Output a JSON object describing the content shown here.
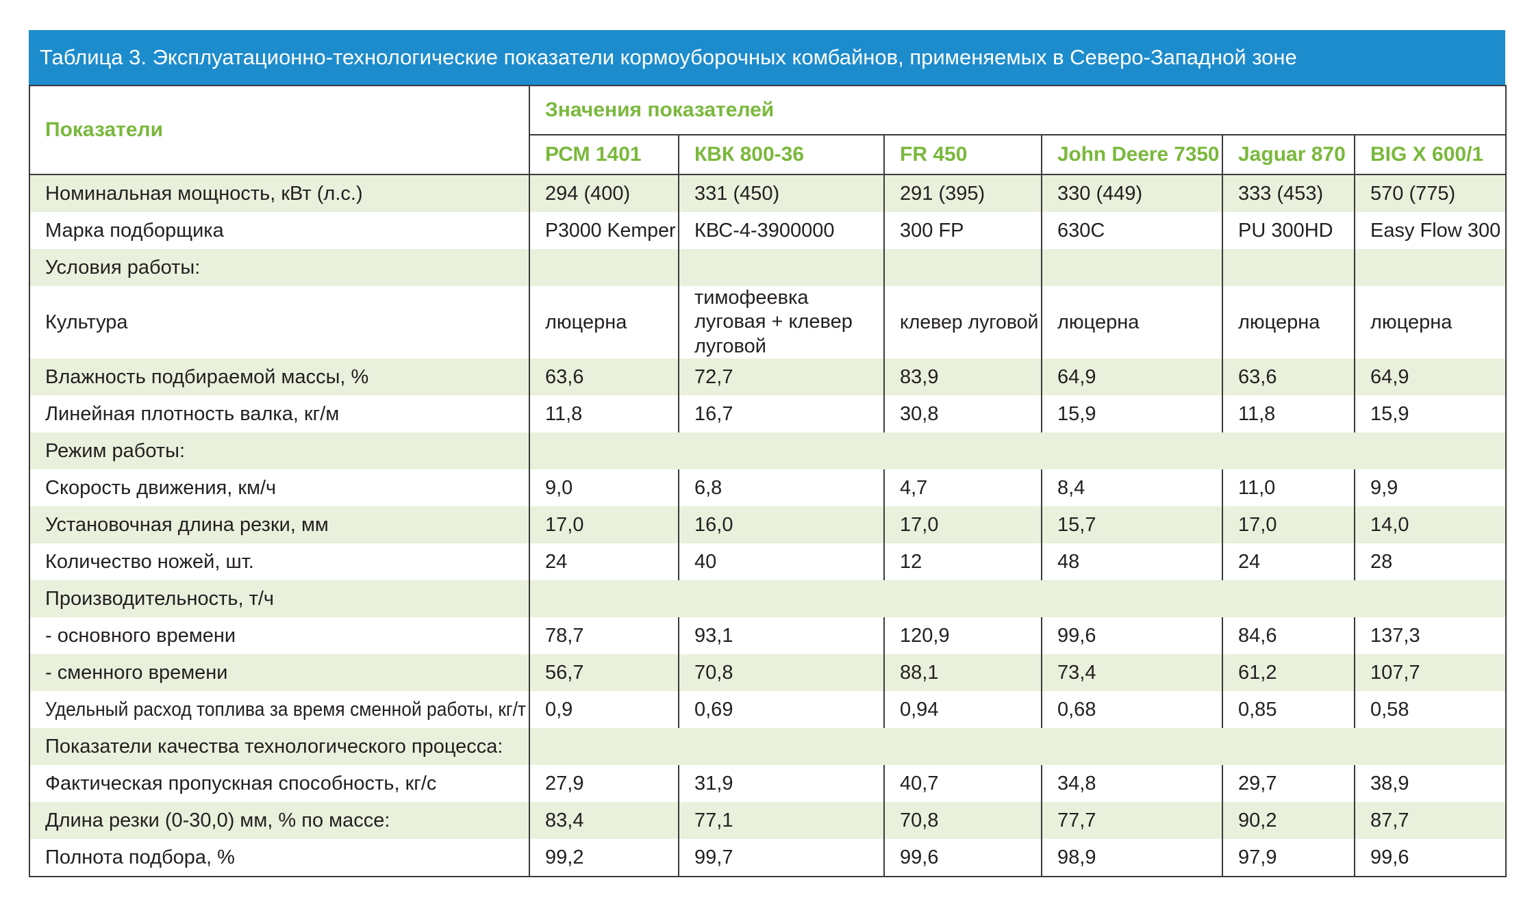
{
  "title": "Таблица 3. Эксплуатационно-технологические показатели кормоуборочных комбайнов, применяемых в Северо-Западной зоне",
  "header": {
    "params_label": "Показатели",
    "values_label": "Значения показателей",
    "models": [
      "РСМ 1401",
      "КВК 800-36",
      "FR 450",
      "John Deere 7350",
      "Jaguar 870",
      "BIG X 600/1"
    ]
  },
  "rows": [
    {
      "label": "Номинальная мощность, кВт (л.с.)",
      "values": [
        "294 (400)",
        "331 (450)",
        "291 (395)",
        "330 (449)",
        "333 (453)",
        "570 (775)"
      ]
    },
    {
      "label": "Марка подборщика",
      "values": [
        "Р3000 Kemper",
        "КВС-4-3900000",
        "300 FP",
        "630С",
        "PU 300HD",
        "Easy Flow 300"
      ]
    },
    {
      "label": "Условия работы:",
      "values": [
        "",
        "",
        "",
        "",
        "",
        ""
      ]
    },
    {
      "label": "Культура",
      "values": [
        "люцерна",
        "тимофеевка луговая + клевер луговой",
        "клевер луговой",
        "люцерна",
        "люцерна",
        "люцерна"
      ]
    },
    {
      "label": "Влажность подбираемой массы, %",
      "values": [
        "63,6",
        "72,7",
        "83,9",
        "64,9",
        "63,6",
        "64,9"
      ]
    },
    {
      "label": "Линейная плотность валка, кг/м",
      "values": [
        "11,8",
        "16,7",
        "30,8",
        "15,9",
        "11,8",
        "15,9"
      ]
    },
    {
      "label": "Режим работы:"
    },
    {
      "label": "Скорость движения, км/ч",
      "values": [
        "9,0",
        "6,8",
        "4,7",
        "8,4",
        "11,0",
        "9,9"
      ]
    },
    {
      "label": "Установочная длина резки, мм",
      "values": [
        "17,0",
        "16,0",
        "17,0",
        "15,7",
        "17,0",
        "14,0"
      ]
    },
    {
      "label": "Количество ножей, шт.",
      "values": [
        "24",
        "40",
        "12",
        "48",
        "24",
        "28"
      ]
    },
    {
      "label": "Производительность, т/ч"
    },
    {
      "label": "- основного времени",
      "values": [
        "78,7",
        "93,1",
        "120,9",
        "99,6",
        "84,6",
        "137,3"
      ]
    },
    {
      "label": "- сменного времени",
      "values": [
        "56,7",
        "70,8",
        "88,1",
        "73,4",
        "61,2",
        "107,7"
      ]
    },
    {
      "label": "Удельный расход топлива за время сменной работы, кг/т",
      "values": [
        "0,9",
        "0,69",
        "0,94",
        "0,68",
        "0,85",
        "0,58"
      ]
    },
    {
      "label": "Показатели качества технологического процесса:"
    },
    {
      "label": "Фактическая пропускная способность, кг/с",
      "values": [
        "27,9",
        "31,9",
        "40,7",
        "34,8",
        "29,7",
        "38,9"
      ]
    },
    {
      "label": "Длина резки (0-30,0) мм, % по массе:",
      "values": [
        "83,4",
        "77,1",
        "70,8",
        "77,7",
        "90,2",
        "87,7"
      ]
    },
    {
      "label": "Полнота подбора, %",
      "values": [
        "99,2",
        "99,7",
        "99,6",
        "98,9",
        "97,9",
        "99,6"
      ]
    }
  ],
  "colors": {
    "title_bar": "#1d8ccd",
    "header_text": "#7ab83c",
    "row_shade": "#e9f1dc"
  }
}
